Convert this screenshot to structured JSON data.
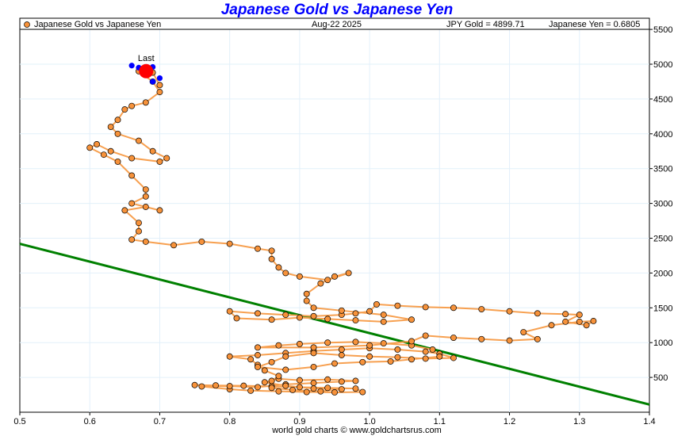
{
  "chart_data": {
    "type": "scatter",
    "title": "Japanese Gold vs Japanese Yen",
    "legend": "Japanese Gold vs Japanese Yen",
    "date": "Aug-22  2025",
    "last_gold_label": "JPY Gold = 4899.71",
    "last_yen_label": "Japanese Yen = 0.6805",
    "last_marker_label": "Last",
    "last_point": [
      0.6805,
      4899.71
    ],
    "xlim": [
      0.5,
      1.4
    ],
    "ylim": [
      0,
      5600
    ],
    "x_ticks": [
      "0.5",
      "0.6",
      "0.7",
      "0.8",
      "0.9",
      "1.0",
      "1.1",
      "1.2",
      "1.3",
      "1.4"
    ],
    "y_ticks": [
      "500",
      "1000",
      "1500",
      "2000",
      "2500",
      "3000",
      "3500",
      "4000",
      "4500",
      "5000",
      "5500"
    ],
    "trend_line": [
      [
        0.5,
        2420
      ],
      [
        1.4,
        110
      ]
    ],
    "colors": {
      "points": "#f7923a",
      "line": "#f7a050",
      "trend": "#008000",
      "recent": "#0000ff",
      "last": "#ff0000",
      "title": "#0000ff"
    },
    "points": [
      [
        0.75,
        390
      ],
      [
        0.78,
        385
      ],
      [
        0.82,
        380
      ],
      [
        0.86,
        372
      ],
      [
        0.9,
        360
      ],
      [
        0.94,
        350
      ],
      [
        0.98,
        340
      ],
      [
        0.99,
        290
      ],
      [
        0.95,
        285
      ],
      [
        0.91,
        290
      ],
      [
        0.87,
        300
      ],
      [
        0.83,
        310
      ],
      [
        0.8,
        330
      ],
      [
        0.76,
        370
      ],
      [
        0.8,
        375
      ],
      [
        0.84,
        360
      ],
      [
        0.88,
        400
      ],
      [
        0.92,
        420
      ],
      [
        0.96,
        440
      ],
      [
        0.98,
        450
      ],
      [
        0.94,
        470
      ],
      [
        0.9,
        460
      ],
      [
        0.87,
        480
      ],
      [
        0.85,
        430
      ],
      [
        0.88,
        380
      ],
      [
        0.92,
        340
      ],
      [
        0.96,
        330
      ],
      [
        0.93,
        300
      ],
      [
        0.89,
        320
      ],
      [
        0.86,
        350
      ],
      [
        0.86,
        450
      ],
      [
        0.87,
        520
      ],
      [
        0.85,
        600
      ],
      [
        0.84,
        680
      ],
      [
        0.83,
        760
      ],
      [
        0.8,
        800
      ],
      [
        0.84,
        820
      ],
      [
        0.88,
        850
      ],
      [
        0.92,
        880
      ],
      [
        0.96,
        900
      ],
      [
        1.0,
        920
      ],
      [
        1.04,
        900
      ],
      [
        1.08,
        870
      ],
      [
        1.1,
        840
      ],
      [
        1.12,
        780
      ],
      [
        1.08,
        770
      ],
      [
        1.04,
        790
      ],
      [
        1.0,
        800
      ],
      [
        0.96,
        820
      ],
      [
        0.92,
        850
      ],
      [
        0.88,
        800
      ],
      [
        0.86,
        720
      ],
      [
        0.84,
        650
      ],
      [
        0.88,
        610
      ],
      [
        0.92,
        650
      ],
      [
        0.95,
        700
      ],
      [
        0.99,
        720
      ],
      [
        1.03,
        730
      ],
      [
        1.06,
        760
      ],
      [
        1.1,
        800
      ],
      [
        1.09,
        900
      ],
      [
        1.06,
        960
      ],
      [
        1.02,
        990
      ],
      [
        0.98,
        1010
      ],
      [
        0.94,
        1000
      ],
      [
        0.9,
        980
      ],
      [
        0.87,
        960
      ],
      [
        0.84,
        930
      ],
      [
        0.92,
        930
      ],
      [
        1.0,
        960
      ],
      [
        1.06,
        1020
      ],
      [
        1.08,
        1100
      ],
      [
        1.12,
        1070
      ],
      [
        1.16,
        1050
      ],
      [
        1.2,
        1030
      ],
      [
        1.24,
        1050
      ],
      [
        1.22,
        1150
      ],
      [
        1.26,
        1250
      ],
      [
        1.3,
        1300
      ],
      [
        1.32,
        1310
      ],
      [
        1.31,
        1250
      ],
      [
        1.28,
        1300
      ],
      [
        1.3,
        1400
      ],
      [
        1.28,
        1410
      ],
      [
        1.24,
        1420
      ],
      [
        1.2,
        1450
      ],
      [
        1.16,
        1480
      ],
      [
        1.12,
        1500
      ],
      [
        1.08,
        1510
      ],
      [
        1.04,
        1530
      ],
      [
        1.01,
        1550
      ],
      [
        1.0,
        1450
      ],
      [
        0.98,
        1420
      ],
      [
        0.96,
        1400
      ],
      [
        0.92,
        1380
      ],
      [
        0.88,
        1400
      ],
      [
        0.84,
        1420
      ],
      [
        0.8,
        1450
      ],
      [
        0.81,
        1350
      ],
      [
        0.86,
        1330
      ],
      [
        0.9,
        1360
      ],
      [
        0.94,
        1340
      ],
      [
        0.98,
        1320
      ],
      [
        1.02,
        1300
      ],
      [
        1.06,
        1330
      ],
      [
        1.02,
        1400
      ],
      [
        0.96,
        1460
      ],
      [
        0.92,
        1500
      ],
      [
        0.91,
        1600
      ],
      [
        0.91,
        1700
      ],
      [
        0.93,
        1850
      ],
      [
        0.95,
        1950
      ],
      [
        0.97,
        2000
      ],
      [
        0.94,
        1900
      ],
      [
        0.9,
        1950
      ],
      [
        0.88,
        2000
      ],
      [
        0.87,
        2080
      ],
      [
        0.86,
        2200
      ],
      [
        0.86,
        2320
      ],
      [
        0.84,
        2350
      ],
      [
        0.8,
        2420
      ],
      [
        0.76,
        2450
      ],
      [
        0.72,
        2400
      ],
      [
        0.68,
        2450
      ],
      [
        0.66,
        2480
      ],
      [
        0.67,
        2600
      ],
      [
        0.67,
        2720
      ],
      [
        0.65,
        2900
      ],
      [
        0.68,
        2950
      ],
      [
        0.7,
        2900
      ],
      [
        0.66,
        3000
      ],
      [
        0.68,
        3100
      ],
      [
        0.68,
        3200
      ],
      [
        0.66,
        3400
      ],
      [
        0.64,
        3600
      ],
      [
        0.62,
        3700
      ],
      [
        0.6,
        3800
      ],
      [
        0.61,
        3850
      ],
      [
        0.63,
        3750
      ],
      [
        0.66,
        3650
      ],
      [
        0.7,
        3600
      ],
      [
        0.71,
        3650
      ],
      [
        0.69,
        3750
      ],
      [
        0.67,
        3900
      ],
      [
        0.64,
        4000
      ],
      [
        0.63,
        4100
      ],
      [
        0.64,
        4200
      ],
      [
        0.65,
        4350
      ],
      [
        0.66,
        4400
      ],
      [
        0.68,
        4450
      ],
      [
        0.7,
        4600
      ],
      [
        0.69,
        4750
      ],
      [
        0.67,
        4900
      ],
      [
        0.69,
        4880
      ],
      [
        0.7,
        4700
      ]
    ],
    "recent_points": [
      [
        0.66,
        4980
      ],
      [
        0.67,
        4950
      ],
      [
        0.69,
        4960
      ],
      [
        0.7,
        4800
      ],
      [
        0.69,
        4750
      ],
      [
        0.68,
        4920
      ]
    ]
  },
  "footer": "world gold charts © www.goldchartsrus.com"
}
